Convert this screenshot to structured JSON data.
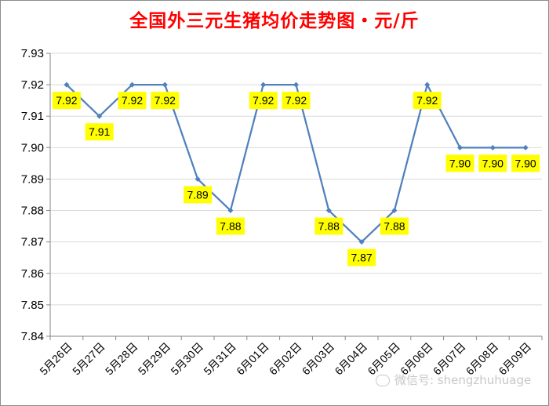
{
  "chart_data": {
    "type": "line",
    "title": "全国外三元生猪均价走势图・元/斤",
    "categories": [
      "5月26日",
      "5月27日",
      "5月28日",
      "5月29日",
      "5月30日",
      "5月31日",
      "6月01日",
      "6月02日",
      "6月03日",
      "6月04日",
      "6月05日",
      "6月06日",
      "6月07日",
      "6月08日",
      "6月09日"
    ],
    "values": [
      7.92,
      7.91,
      7.92,
      7.92,
      7.89,
      7.88,
      7.92,
      7.92,
      7.88,
      7.87,
      7.88,
      7.92,
      7.9,
      7.9,
      7.9
    ],
    "data_labels": [
      "7.92",
      "7.91",
      "7.92",
      "7.92",
      "7.89",
      "7.88",
      "7.92",
      "7.92",
      "7.88",
      "7.87",
      "7.88",
      "7.92",
      "7.90",
      "7.90",
      "7.90"
    ],
    "ylim": [
      7.84,
      7.93
    ],
    "yticks": [
      "7.84",
      "7.85",
      "7.86",
      "7.87",
      "7.88",
      "7.89",
      "7.90",
      "7.91",
      "7.92",
      "7.93"
    ],
    "xlabel": "",
    "ylabel": "",
    "grid": true,
    "legend": "none",
    "colors": {
      "line": "#4f81bd",
      "marker": "#4f81bd",
      "label_bg": "#ffff00",
      "grid": "#d9d9d9",
      "title": "#ff0000"
    }
  },
  "watermark": {
    "text": "微信号: shengzhuhuage",
    "icon": "wechat-icon"
  }
}
